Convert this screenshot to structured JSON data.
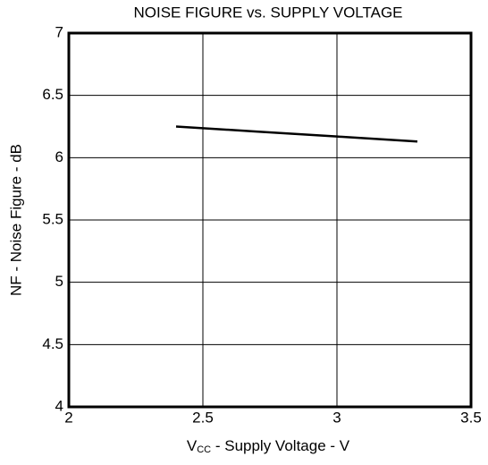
{
  "chart_data": {
    "type": "line",
    "title": "NOISE FIGURE vs. SUPPLY VOLTAGE",
    "xlabel": [
      "V",
      "CC",
      " - Supply Voltage - V"
    ],
    "ylabel": "NF - Noise Figure - dB",
    "x": [
      2.4,
      2.7,
      3.0,
      3.3
    ],
    "series": [
      {
        "name": "NF",
        "color": "#000000",
        "values": [
          6.25,
          6.21,
          6.17,
          6.13
        ]
      }
    ],
    "xlim": [
      2,
      3.5
    ],
    "xticks": [
      2,
      2.5,
      3,
      3.5
    ],
    "ylim": [
      4,
      7
    ],
    "yticks": [
      4,
      4.5,
      5,
      5.5,
      6,
      6.5,
      7
    ],
    "grid": true
  }
}
